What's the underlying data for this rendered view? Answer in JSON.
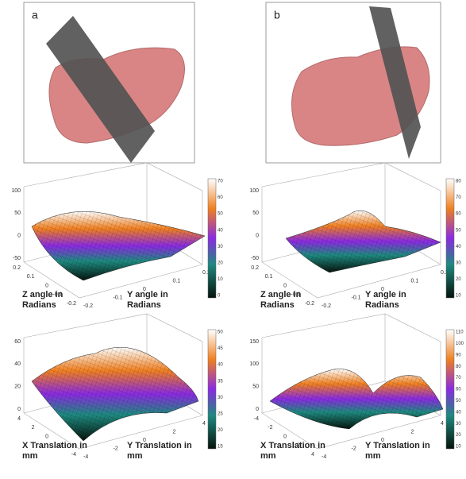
{
  "panels": [
    {
      "label": "a"
    },
    {
      "label": "b"
    }
  ],
  "plots": [
    {
      "zticks": [
        "100",
        "50",
        "0",
        "-50"
      ],
      "xticks": [
        "0.2",
        "0.1",
        "0",
        "-0.1",
        "-0.2"
      ],
      "yticks": [
        "-0.2",
        "-0.1",
        "0",
        "0.1",
        "0.2"
      ],
      "xlabel": "Z angle in Radians",
      "ylabel": "Y angle in Radians",
      "cbticks": [
        "70",
        "60",
        "50",
        "40",
        "30",
        "20",
        "10",
        "0"
      ]
    },
    {
      "zticks": [
        "100",
        "50",
        "0",
        "-50"
      ],
      "xticks": [
        "0.2",
        "0.1",
        "0",
        "-0.1",
        "-0.2"
      ],
      "yticks": [
        "-0.2",
        "-0.1",
        "0",
        "0.1",
        "0.2"
      ],
      "xlabel": "Z angle in Radians",
      "ylabel": "Y angle in Radians",
      "cbticks": [
        "80",
        "70",
        "60",
        "50",
        "40",
        "30",
        "20",
        "10"
      ]
    },
    {
      "zticks": [
        "60",
        "40",
        "20",
        "0"
      ],
      "xticks": [
        "4",
        "2",
        "0",
        "-2",
        "-4"
      ],
      "yticks": [
        "-4",
        "-2",
        "0",
        "2",
        "4"
      ],
      "xlabel": "X Translation in mm",
      "ylabel": "Y Translation in mm",
      "cbticks": [
        "50",
        "45",
        "40",
        "35",
        "30",
        "25",
        "20",
        "15"
      ]
    },
    {
      "zticks": [
        "150",
        "100",
        "50",
        "0"
      ],
      "xticks": [
        "-4",
        "-2",
        "0",
        "2",
        "4"
      ],
      "yticks": [
        "-4",
        "-2",
        "0",
        "2",
        "4"
      ],
      "xlabel": "X Translation in mm",
      "ylabel": "Y Translation in mm",
      "cbticks": [
        "110",
        "100",
        "90",
        "80",
        "70",
        "60",
        "50",
        "40",
        "30",
        "20",
        "10"
      ]
    }
  ]
}
